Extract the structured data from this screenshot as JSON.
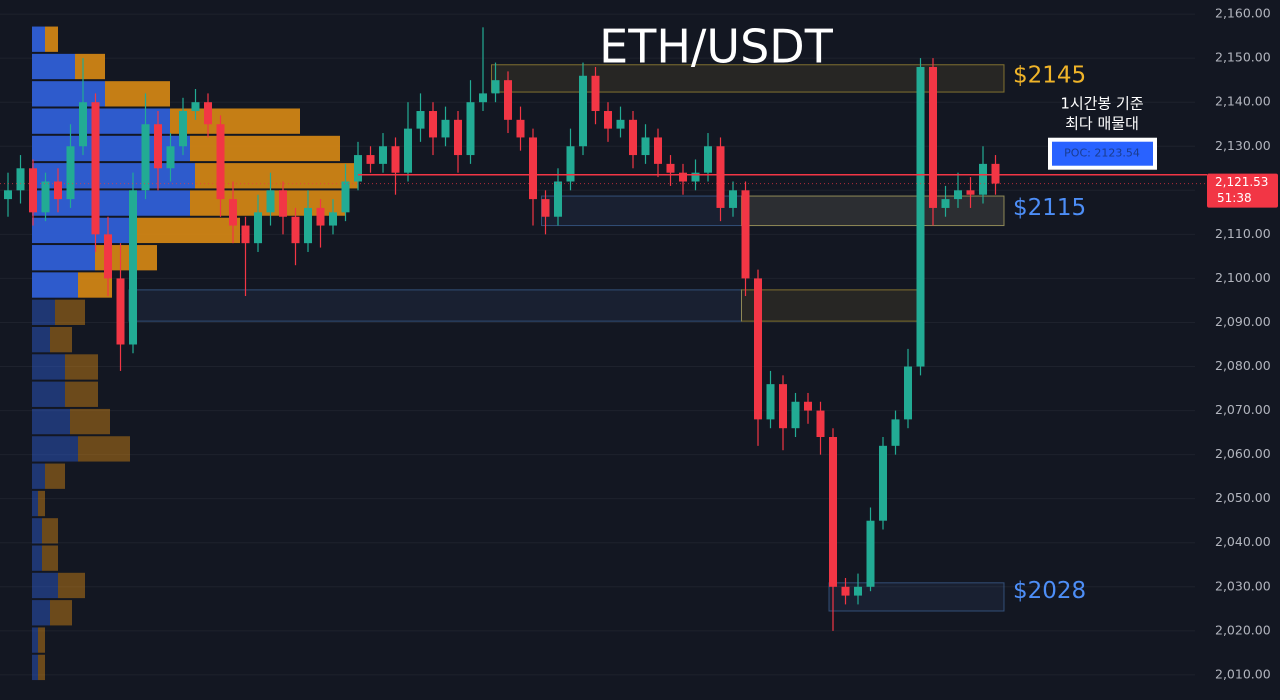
{
  "chart_data": {
    "type": "candlestick",
    "title": "ETH/USDT",
    "up_color": "#22ab94",
    "down_color": "#f23645",
    "ylim": [
      2004.3,
      2163.2
    ],
    "yticks": [
      {
        "value": 2010,
        "label": "2,010.00"
      },
      {
        "value": 2020,
        "label": "2,020.00"
      },
      {
        "value": 2030,
        "label": "2,030.00"
      },
      {
        "value": 2040,
        "label": "2,040.00"
      },
      {
        "value": 2050,
        "label": "2,050.00"
      },
      {
        "value": 2060,
        "label": "2,060.00"
      },
      {
        "value": 2070,
        "label": "2,070.00"
      },
      {
        "value": 2080,
        "label": "2,080.00"
      },
      {
        "value": 2090,
        "label": "2,090.00"
      },
      {
        "value": 2100,
        "label": "2,100.00"
      },
      {
        "value": 2110,
        "label": "2,110.00"
      },
      {
        "value": 2120,
        "label": "2,120.00"
      },
      {
        "value": 2130,
        "label": "2,130.00"
      },
      {
        "value": 2140,
        "label": "2,140.00"
      },
      {
        "value": 2150,
        "label": "2,150.00"
      },
      {
        "value": 2160,
        "label": "2,160.00"
      }
    ],
    "grid": true,
    "candles": [
      [
        2118,
        2124,
        2114,
        2120
      ],
      [
        2120,
        2128,
        2117,
        2125
      ],
      [
        2125,
        2127,
        2112,
        2115
      ],
      [
        2115,
        2124,
        2113,
        2122
      ],
      [
        2122,
        2125,
        2115,
        2118
      ],
      [
        2118,
        2135,
        2116,
        2130
      ],
      [
        2130,
        2150,
        2128,
        2140
      ],
      [
        2140,
        2142,
        2106,
        2110
      ],
      [
        2110,
        2114,
        2096,
        2100
      ],
      [
        2100,
        2108,
        2079,
        2085
      ],
      [
        2085,
        2124,
        2083,
        2120
      ],
      [
        2120,
        2142,
        2118,
        2135
      ],
      [
        2135,
        2138,
        2120,
        2125
      ],
      [
        2125,
        2133,
        2122,
        2130
      ],
      [
        2130,
        2141,
        2128,
        2138
      ],
      [
        2138,
        2143,
        2136,
        2140
      ],
      [
        2140,
        2142,
        2132,
        2135
      ],
      [
        2135,
        2137,
        2114,
        2118
      ],
      [
        2118,
        2122,
        2108,
        2112
      ],
      [
        2112,
        2114,
        2096,
        2108
      ],
      [
        2108,
        2119,
        2106,
        2115
      ],
      [
        2115,
        2124,
        2112,
        2120
      ],
      [
        2120,
        2122,
        2110,
        2114
      ],
      [
        2114,
        2116,
        2103,
        2108
      ],
      [
        2108,
        2120,
        2106,
        2116
      ],
      [
        2116,
        2118,
        2107,
        2112
      ],
      [
        2112,
        2118,
        2110,
        2115
      ],
      [
        2115,
        2126,
        2113,
        2122
      ],
      [
        2122,
        2131,
        2120,
        2128
      ],
      [
        2128,
        2130,
        2124,
        2126
      ],
      [
        2126,
        2133,
        2124,
        2130
      ],
      [
        2130,
        2132,
        2119,
        2124
      ],
      [
        2124,
        2140,
        2122,
        2134
      ],
      [
        2134,
        2142,
        2131,
        2138
      ],
      [
        2138,
        2140,
        2128,
        2132
      ],
      [
        2132,
        2139,
        2130,
        2136
      ],
      [
        2136,
        2138,
        2124,
        2128
      ],
      [
        2128,
        2145,
        2126,
        2140
      ],
      [
        2140,
        2157,
        2138,
        2142
      ],
      [
        2142,
        2149,
        2140,
        2145
      ],
      [
        2145,
        2147,
        2133,
        2136
      ],
      [
        2136,
        2139,
        2129,
        2132
      ],
      [
        2132,
        2134,
        2112,
        2118
      ],
      [
        2118,
        2120,
        2110,
        2114
      ],
      [
        2114,
        2125,
        2112,
        2122
      ],
      [
        2122,
        2134,
        2120,
        2130
      ],
      [
        2130,
        2149,
        2128,
        2146
      ],
      [
        2146,
        2148,
        2135,
        2138
      ],
      [
        2138,
        2140,
        2131,
        2134
      ],
      [
        2134,
        2139,
        2132,
        2136
      ],
      [
        2136,
        2138,
        2125,
        2128
      ],
      [
        2128,
        2135,
        2126,
        2132
      ],
      [
        2132,
        2134,
        2123,
        2126
      ],
      [
        2126,
        2128,
        2121,
        2124
      ],
      [
        2124,
        2126,
        2119,
        2122
      ],
      [
        2122,
        2127,
        2120,
        2124
      ],
      [
        2124,
        2133,
        2122,
        2130
      ],
      [
        2130,
        2132,
        2113,
        2116
      ],
      [
        2116,
        2122,
        2114,
        2120
      ],
      [
        2120,
        2122,
        2096,
        2100
      ],
      [
        2100,
        2102,
        2062,
        2068
      ],
      [
        2068,
        2079,
        2066,
        2076
      ],
      [
        2076,
        2078,
        2061,
        2066
      ],
      [
        2066,
        2074,
        2064,
        2072
      ],
      [
        2072,
        2074,
        2067,
        2070
      ],
      [
        2070,
        2072,
        2060,
        2064
      ],
      [
        2064,
        2066,
        2020,
        2030
      ],
      [
        2030,
        2032,
        2026,
        2028
      ],
      [
        2028,
        2033,
        2026,
        2030
      ],
      [
        2030,
        2048,
        2029,
        2045
      ],
      [
        2045,
        2064,
        2043,
        2062
      ],
      [
        2062,
        2070,
        2060,
        2068
      ],
      [
        2068,
        2084,
        2066,
        2080
      ],
      [
        2080,
        2150,
        2078,
        2148
      ],
      [
        2148,
        2150,
        2112,
        2116
      ],
      [
        2116,
        2121,
        2114,
        2118
      ],
      [
        2118,
        2124,
        2116,
        2120
      ],
      [
        2120,
        2123,
        2116,
        2119
      ],
      [
        2119,
        2130,
        2117,
        2126
      ],
      [
        2126,
        2128,
        2119,
        2121.53
      ]
    ],
    "volume_profile": {
      "bins": [
        2008.6,
        2014.8,
        2021.0,
        2027.2,
        2033.4,
        2039.6,
        2045.8,
        2052.0,
        2058.2,
        2064.4,
        2070.6,
        2076.8,
        2083.0,
        2089.2,
        2095.4,
        2101.6,
        2107.8,
        2114.0,
        2120.2,
        2126.4,
        2132.6,
        2138.8,
        2145.0,
        2151.2,
        2157.4
      ],
      "buy": [
        6,
        6,
        18,
        26,
        10,
        10,
        6,
        13,
        46,
        38,
        33,
        33,
        18,
        23,
        46,
        63,
        103,
        158,
        163,
        158,
        138,
        73,
        43,
        13
      ],
      "sell": [
        7,
        7,
        22,
        27,
        16,
        16,
        7,
        20,
        52,
        40,
        33,
        33,
        22,
        30,
        34,
        62,
        105,
        155,
        163,
        150,
        130,
        65,
        30,
        13
      ],
      "buy_color": "#2f5fd6",
      "sell_color": "#d98a14"
    },
    "zones": [
      {
        "from": 39,
        "to": 80,
        "low": 2142.3,
        "high": 2148.5,
        "color": "#d4b43c"
      },
      {
        "from": 43,
        "to": 80,
        "low": 2112.0,
        "high": 2118.7,
        "color": "#4a7ab8"
      },
      {
        "from": 59,
        "to": 80,
        "low": 2112.0,
        "high": 2118.7,
        "color": "#d4b43c"
      },
      {
        "from": 10,
        "to": 59,
        "low": 2090.3,
        "high": 2097.4,
        "color": "#4a7ab8"
      },
      {
        "from": 59,
        "to": 73.4,
        "low": 2090.3,
        "high": 2097.4,
        "color": "#d4b43c"
      },
      {
        "from": 66,
        "to": 80,
        "low": 2024.5,
        "high": 2030.9,
        "color": "#4a7ab8"
      }
    ],
    "annotations": [
      {
        "text": "$2145",
        "value": 2145,
        "color": "#f0b429"
      },
      {
        "text": "$2115",
        "value": 2115,
        "color": "#4d8ef7"
      },
      {
        "text": "$2028",
        "value": 2028,
        "color": "#4d8ef7"
      }
    ],
    "note": [
      "1시간봉 기준",
      "최다 매물대"
    ],
    "poc": {
      "label": "POC: 2123.54",
      "value": 2123.54
    },
    "last_price": {
      "value": 2121.53,
      "label": "2,121.53",
      "countdown": "51:38"
    }
  }
}
